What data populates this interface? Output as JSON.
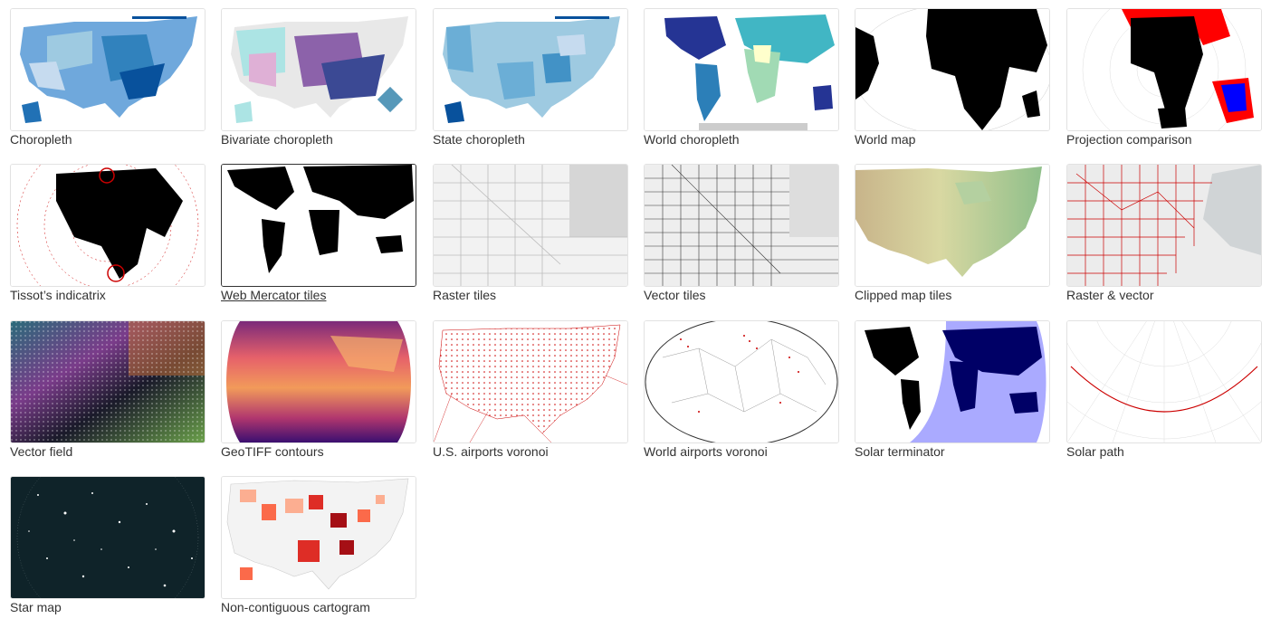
{
  "gallery": {
    "items": [
      {
        "title": "Choropleth",
        "thumb": "us-counties-blue"
      },
      {
        "title": "Bivariate choropleth",
        "thumb": "us-counties-bivariate"
      },
      {
        "title": "State choropleth",
        "thumb": "us-states-blue"
      },
      {
        "title": "World choropleth",
        "thumb": "world-choropleth"
      },
      {
        "title": "World map",
        "thumb": "world-black"
      },
      {
        "title": "Projection comparison",
        "thumb": "projection-comparison"
      },
      {
        "title": "Tissot’s indicatrix",
        "thumb": "tissot"
      },
      {
        "title": "Web Mercator tiles",
        "thumb": "mercator-tiles",
        "hovered": true
      },
      {
        "title": "Raster tiles",
        "thumb": "raster-tiles"
      },
      {
        "title": "Vector tiles",
        "thumb": "vector-tiles"
      },
      {
        "title": "Clipped map tiles",
        "thumb": "clipped-tiles"
      },
      {
        "title": "Raster & vector",
        "thumb": "raster-vector"
      },
      {
        "title": "Vector field",
        "thumb": "vector-field"
      },
      {
        "title": "GeoTIFF contours",
        "thumb": "geotiff"
      },
      {
        "title": "U.S. airports voronoi",
        "thumb": "us-voronoi"
      },
      {
        "title": "World airports voronoi",
        "thumb": "world-voronoi"
      },
      {
        "title": "Solar terminator",
        "thumb": "solar-terminator"
      },
      {
        "title": "Solar path",
        "thumb": "solar-path"
      },
      {
        "title": "Star map",
        "thumb": "star-map"
      },
      {
        "title": "Non-contiguous cartogram",
        "thumb": "cartogram"
      }
    ]
  }
}
